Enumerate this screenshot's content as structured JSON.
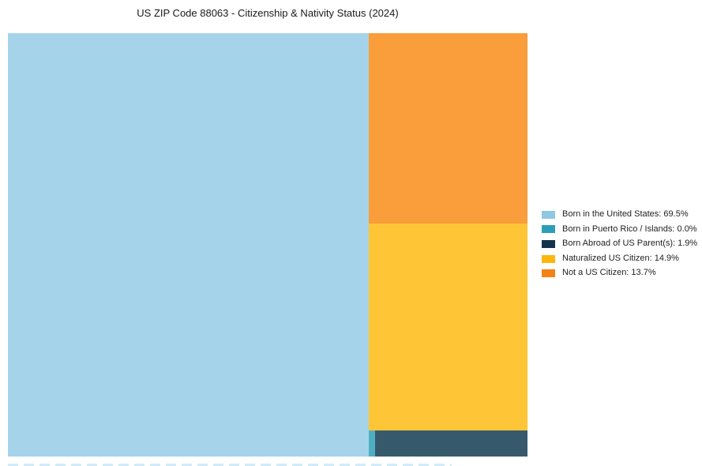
{
  "title": "US ZIP Code 88063 - Citizenship & Nativity Status (2024)",
  "chart_data": {
    "type": "treemap",
    "title": "US ZIP Code 88063 - Citizenship & Nativity Status (2024)",
    "unit": "percent",
    "total": 100,
    "legend_position": "right",
    "background": "#ffffff",
    "segments": [
      {
        "id": "born-us",
        "label": "Born in the United States",
        "value": 69.5,
        "display_value": "69.5%",
        "legend_text": "Born in the United States: 69.5%",
        "fill": "#a5d4ea",
        "swatch_color": "#8fc8e3"
      },
      {
        "id": "born-pr",
        "label": "Born in Puerto Rico / Islands",
        "value": 0.0,
        "display_value": "0.0%",
        "legend_text": "Born in Puerto Rico / Islands: 0.0%",
        "fill": "#4fafc2",
        "swatch_color": "#2e9dba"
      },
      {
        "id": "born-abroad",
        "label": "Born Abroad of US Parent(s)",
        "value": 1.9,
        "display_value": "1.9%",
        "legend_text": "Born Abroad of US Parent(s): 1.9%",
        "fill": "#37596c",
        "swatch_color": "#14344e"
      },
      {
        "id": "naturalized",
        "label": "Naturalized US Citizen",
        "value": 14.9,
        "display_value": "14.9%",
        "legend_text": "Naturalized US Citizen: 14.9%",
        "fill": "#fec636",
        "swatch_color": "#fdb70d"
      },
      {
        "id": "not-citizen",
        "label": "Not a US Citizen",
        "value": 13.7,
        "display_value": "13.7%",
        "legend_text": "Not a US Citizen: 13.7%",
        "fill": "#fa9d3b",
        "swatch_color": "#f58216"
      }
    ]
  }
}
